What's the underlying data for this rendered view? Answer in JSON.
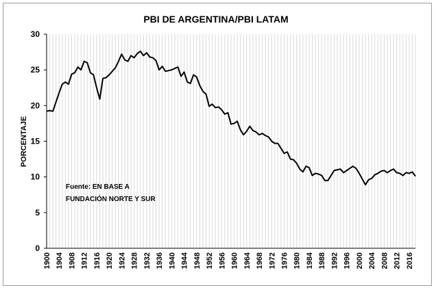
{
  "chart_data": {
    "type": "line",
    "title": "PBI DE ARGENTINA/PBI LATAM",
    "xlabel": "",
    "ylabel": "PORCENTAJE",
    "ylim": [
      0,
      30
    ],
    "yticks": [
      0,
      5,
      10,
      15,
      20,
      25,
      30
    ],
    "xlim": [
      1900,
      2018
    ],
    "xticks": [
      1900,
      1904,
      1908,
      1912,
      1916,
      1920,
      1924,
      1928,
      1932,
      1936,
      1940,
      1944,
      1948,
      1952,
      1956,
      1960,
      1964,
      1968,
      1972,
      1976,
      1980,
      1984,
      1988,
      1992,
      1996,
      2000,
      2004,
      2008,
      2012,
      2016
    ],
    "grid": "vertical",
    "annotation": [
      "Fuente: EN BASE A",
      "FUNDACIÓN NORTE Y SUR"
    ],
    "series": [
      {
        "name": "PBI Argentina / PBI Latam",
        "x": [
          1900,
          1901,
          1902,
          1903,
          1904,
          1905,
          1906,
          1907,
          1908,
          1909,
          1910,
          1911,
          1912,
          1913,
          1914,
          1915,
          1916,
          1917,
          1918,
          1919,
          1920,
          1921,
          1922,
          1923,
          1924,
          1925,
          1926,
          1927,
          1928,
          1929,
          1930,
          1931,
          1932,
          1933,
          1934,
          1935,
          1936,
          1937,
          1938,
          1939,
          1940,
          1941,
          1942,
          1943,
          1944,
          1945,
          1946,
          1947,
          1948,
          1949,
          1950,
          1951,
          1952,
          1953,
          1954,
          1955,
          1956,
          1957,
          1958,
          1959,
          1960,
          1961,
          1962,
          1963,
          1964,
          1965,
          1966,
          1967,
          1968,
          1969,
          1970,
          1971,
          1972,
          1973,
          1974,
          1975,
          1976,
          1977,
          1978,
          1979,
          1980,
          1981,
          1982,
          1983,
          1984,
          1985,
          1986,
          1987,
          1988,
          1989,
          1990,
          1991,
          1992,
          1993,
          1994,
          1995,
          1996,
          1997,
          1998,
          1999,
          2000,
          2001,
          2002,
          2003,
          2004,
          2005,
          2006,
          2007,
          2008,
          2009,
          2010,
          2011,
          2012,
          2013,
          2014,
          2015,
          2016,
          2017,
          2018
        ],
        "values": [
          19.2,
          19.3,
          19.2,
          20.5,
          21.8,
          23.0,
          23.3,
          23.0,
          24.4,
          24.6,
          25.4,
          25.0,
          26.2,
          26.0,
          24.6,
          24.3,
          22.5,
          20.9,
          23.8,
          23.9,
          24.3,
          24.8,
          25.3,
          26.2,
          27.2,
          26.4,
          26.2,
          27.0,
          26.7,
          27.3,
          27.6,
          27.0,
          27.4,
          26.8,
          26.7,
          26.3,
          25.0,
          25.5,
          24.8,
          24.9,
          25.0,
          25.2,
          25.4,
          24.1,
          24.7,
          23.3,
          23.1,
          24.3,
          24.0,
          22.8,
          22.0,
          21.6,
          19.9,
          20.2,
          19.7,
          19.8,
          19.4,
          18.8,
          19.0,
          17.4,
          17.5,
          17.8,
          16.6,
          15.9,
          16.4,
          17.1,
          16.5,
          16.3,
          15.9,
          16.1,
          15.8,
          15.6,
          15.0,
          14.7,
          14.7,
          14.0,
          13.3,
          13.5,
          12.5,
          12.4,
          11.9,
          11.1,
          10.7,
          11.5,
          11.3,
          10.2,
          10.5,
          10.4,
          10.2,
          9.5,
          9.5,
          10.2,
          10.9,
          11.0,
          11.1,
          10.6,
          10.9,
          11.2,
          11.5,
          11.2,
          10.5,
          9.7,
          8.9,
          9.6,
          9.8,
          10.3,
          10.5,
          10.8,
          10.9,
          10.6,
          10.9,
          11.1,
          10.6,
          10.5,
          10.2,
          10.6,
          10.5,
          10.7,
          10.1
        ]
      }
    ]
  }
}
